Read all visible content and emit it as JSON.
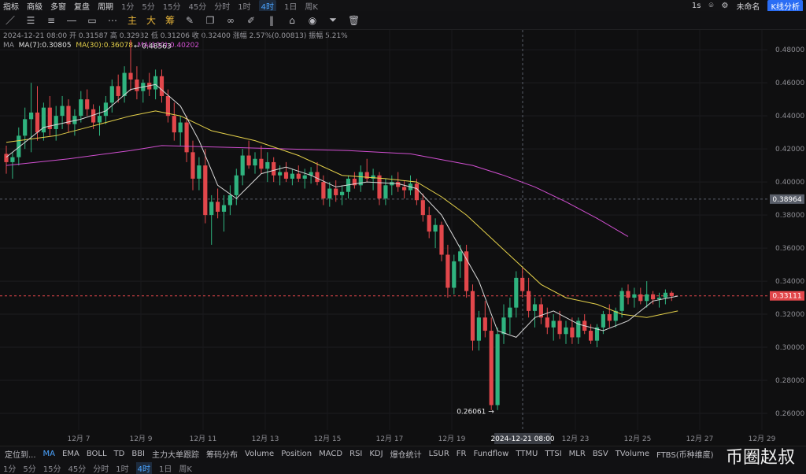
{
  "topbar": {
    "items": [
      "指标",
      "商級",
      "多窗",
      "复盘",
      "周期"
    ],
    "timeframes": [
      "1分",
      "5分",
      "15分",
      "45分",
      "分时",
      "1时",
      "4时",
      "1日",
      "周K"
    ],
    "active_timeframe": "4时",
    "right_items": [
      "1s",
      "未命名",
      "K线分析"
    ]
  },
  "tools": {
    "cn_buttons": [
      "主",
      "大",
      "筹"
    ]
  },
  "legend": {
    "line1": "2024-12-21 08:00  开 0.31587  高 0.32932  低 0.31206  收 0.32400  涨幅 2.57%(0.00813)  振幅 5.21%",
    "ma_label": "MA",
    "ma7": "MA(7):0.30805",
    "ma30": "MA(30):0.36078",
    "ma100": "MA(100):0.40202"
  },
  "bottombar": {
    "lead": "定位到...",
    "items": [
      "MA",
      "EMA",
      "BOLL",
      "TD",
      "BBI",
      "主力大单跟踪",
      "筹码分布",
      "Volume",
      "Position",
      "MACD",
      "RSI",
      "KDJ",
      "爆仓统计",
      "LSUR",
      "FR",
      "Fundflow",
      "TTMU",
      "TTSI",
      "MLR",
      "BSV",
      "TVolume",
      "FTBS(币种维度)"
    ],
    "active": "MA"
  },
  "bottombar2": {
    "items": [
      "1分",
      "5分",
      "15分",
      "45分",
      "分时",
      "1时",
      "4时",
      "1日",
      "周K"
    ],
    "active": "4时"
  },
  "watermark": "币圈赵叔",
  "colors": {
    "background": "#0f0f10",
    "up": "#2fb37f",
    "down": "#e2474b",
    "ma7": "#d9d9d9",
    "ma30": "#e5d14a",
    "ma100": "#d14fd1",
    "current_price": "#e2474b",
    "crosshair_price": "#5a5f6a"
  },
  "chart_data": {
    "type": "candlestick",
    "ylim": [
      0.25,
      0.492
    ],
    "y_ticks": [
      0.48,
      0.46,
      0.44,
      0.42,
      0.4,
      0.38,
      0.36,
      0.34,
      0.32,
      0.3,
      0.28,
      0.26
    ],
    "x_ticks": [
      "12月 7",
      "12月 9",
      "12月 11",
      "12月 13",
      "12月 15",
      "12月 17",
      "12月 19",
      "12月 23",
      "12月 25",
      "12月 27",
      "12月 29"
    ],
    "crosshair_x_label": "2024-12-21 08:00",
    "crosshair_price": 0.38964,
    "current_price": 0.33111,
    "high_annotation": 0.48563,
    "low_annotation": 0.26061,
    "candles": [
      [
        0.417,
        0.422,
        0.405,
        0.412
      ],
      [
        0.412,
        0.418,
        0.402,
        0.415
      ],
      [
        0.415,
        0.433,
        0.41,
        0.428
      ],
      [
        0.428,
        0.445,
        0.42,
        0.438
      ],
      [
        0.438,
        0.46,
        0.418,
        0.442
      ],
      [
        0.442,
        0.458,
        0.425,
        0.43
      ],
      [
        0.43,
        0.448,
        0.425,
        0.445
      ],
      [
        0.445,
        0.452,
        0.428,
        0.432
      ],
      [
        0.432,
        0.446,
        0.425,
        0.44
      ],
      [
        0.44,
        0.452,
        0.432,
        0.446
      ],
      [
        0.446,
        0.45,
        0.43,
        0.435
      ],
      [
        0.435,
        0.444,
        0.428,
        0.44
      ],
      [
        0.44,
        0.455,
        0.436,
        0.45
      ],
      [
        0.45,
        0.456,
        0.44,
        0.444
      ],
      [
        0.444,
        0.447,
        0.432,
        0.436
      ],
      [
        0.436,
        0.446,
        0.428,
        0.44
      ],
      [
        0.44,
        0.452,
        0.435,
        0.448
      ],
      [
        0.448,
        0.462,
        0.442,
        0.458
      ],
      [
        0.458,
        0.465,
        0.448,
        0.452
      ],
      [
        0.452,
        0.47,
        0.448,
        0.466
      ],
      [
        0.466,
        0.486,
        0.455,
        0.462
      ],
      [
        0.462,
        0.47,
        0.45,
        0.455
      ],
      [
        0.455,
        0.462,
        0.448,
        0.46
      ],
      [
        0.46,
        0.466,
        0.452,
        0.456
      ],
      [
        0.456,
        0.468,
        0.45,
        0.464
      ],
      [
        0.464,
        0.468,
        0.448,
        0.452
      ],
      [
        0.452,
        0.456,
        0.436,
        0.44
      ],
      [
        0.44,
        0.448,
        0.425,
        0.43
      ],
      [
        0.43,
        0.44,
        0.422,
        0.436
      ],
      [
        0.436,
        0.44,
        0.412,
        0.418
      ],
      [
        0.418,
        0.425,
        0.395,
        0.402
      ],
      [
        0.402,
        0.415,
        0.395,
        0.41
      ],
      [
        0.41,
        0.42,
        0.375,
        0.38
      ],
      [
        0.38,
        0.392,
        0.362,
        0.388
      ],
      [
        0.388,
        0.396,
        0.378,
        0.382
      ],
      [
        0.382,
        0.392,
        0.37,
        0.386
      ],
      [
        0.386,
        0.398,
        0.38,
        0.392
      ],
      [
        0.392,
        0.408,
        0.386,
        0.404
      ],
      [
        0.404,
        0.42,
        0.398,
        0.416
      ],
      [
        0.416,
        0.425,
        0.408,
        0.41
      ],
      [
        0.41,
        0.418,
        0.405,
        0.414
      ],
      [
        0.414,
        0.422,
        0.405,
        0.408
      ],
      [
        0.408,
        0.418,
        0.4,
        0.412
      ],
      [
        0.412,
        0.415,
        0.4,
        0.404
      ],
      [
        0.404,
        0.41,
        0.398,
        0.406
      ],
      [
        0.406,
        0.412,
        0.4,
        0.402
      ],
      [
        0.402,
        0.408,
        0.398,
        0.405
      ],
      [
        0.405,
        0.41,
        0.4,
        0.402
      ],
      [
        0.402,
        0.408,
        0.396,
        0.404
      ],
      [
        0.404,
        0.409,
        0.399,
        0.406
      ],
      [
        0.406,
        0.412,
        0.398,
        0.4
      ],
      [
        0.4,
        0.404,
        0.386,
        0.39
      ],
      [
        0.39,
        0.4,
        0.385,
        0.396
      ],
      [
        0.396,
        0.401,
        0.388,
        0.392
      ],
      [
        0.392,
        0.398,
        0.386,
        0.394
      ],
      [
        0.394,
        0.404,
        0.39,
        0.402
      ],
      [
        0.402,
        0.406,
        0.396,
        0.398
      ],
      [
        0.398,
        0.41,
        0.394,
        0.406
      ],
      [
        0.406,
        0.414,
        0.4,
        0.402
      ],
      [
        0.402,
        0.408,
        0.395,
        0.404
      ],
      [
        0.404,
        0.406,
        0.386,
        0.39
      ],
      [
        0.39,
        0.402,
        0.386,
        0.398
      ],
      [
        0.398,
        0.404,
        0.392,
        0.4
      ],
      [
        0.4,
        0.406,
        0.394,
        0.397
      ],
      [
        0.397,
        0.401,
        0.39,
        0.395
      ],
      [
        0.395,
        0.404,
        0.392,
        0.399
      ],
      [
        0.399,
        0.402,
        0.386,
        0.389
      ],
      [
        0.389,
        0.393,
        0.376,
        0.38
      ],
      [
        0.38,
        0.385,
        0.366,
        0.37
      ],
      [
        0.37,
        0.378,
        0.36,
        0.374
      ],
      [
        0.374,
        0.376,
        0.352,
        0.356
      ],
      [
        0.356,
        0.362,
        0.33,
        0.336
      ],
      [
        0.336,
        0.356,
        0.332,
        0.352
      ],
      [
        0.352,
        0.362,
        0.342,
        0.358
      ],
      [
        0.358,
        0.362,
        0.33,
        0.334
      ],
      [
        0.334,
        0.338,
        0.298,
        0.304
      ],
      [
        0.304,
        0.322,
        0.298,
        0.318
      ],
      [
        0.318,
        0.328,
        0.306,
        0.31
      ],
      [
        0.31,
        0.318,
        0.262,
        0.265
      ],
      [
        0.265,
        0.312,
        0.262,
        0.308
      ],
      [
        0.308,
        0.326,
        0.302,
        0.318
      ],
      [
        0.318,
        0.33,
        0.308,
        0.324
      ],
      [
        0.324,
        0.346,
        0.318,
        0.342
      ],
      [
        0.342,
        0.348,
        0.33,
        0.334
      ],
      [
        0.334,
        0.342,
        0.318,
        0.322
      ],
      [
        0.322,
        0.33,
        0.312,
        0.326
      ],
      [
        0.326,
        0.33,
        0.314,
        0.318
      ],
      [
        0.318,
        0.324,
        0.308,
        0.312
      ],
      [
        0.312,
        0.32,
        0.304,
        0.316
      ],
      [
        0.316,
        0.322,
        0.305,
        0.308
      ],
      [
        0.308,
        0.316,
        0.302,
        0.312
      ],
      [
        0.312,
        0.318,
        0.302,
        0.306
      ],
      [
        0.306,
        0.318,
        0.302,
        0.316
      ],
      [
        0.316,
        0.32,
        0.308,
        0.31
      ],
      [
        0.31,
        0.314,
        0.302,
        0.304
      ],
      [
        0.304,
        0.314,
        0.3,
        0.312
      ],
      [
        0.312,
        0.322,
        0.308,
        0.32
      ],
      [
        0.32,
        0.326,
        0.312,
        0.316
      ],
      [
        0.316,
        0.324,
        0.312,
        0.322
      ],
      [
        0.322,
        0.336,
        0.318,
        0.334
      ],
      [
        0.334,
        0.338,
        0.326,
        0.33
      ],
      [
        0.33,
        0.336,
        0.324,
        0.332
      ],
      [
        0.332,
        0.336,
        0.326,
        0.328
      ],
      [
        0.328,
        0.34,
        0.324,
        0.332
      ],
      [
        0.332,
        0.334,
        0.326,
        0.329
      ],
      [
        0.329,
        0.333,
        0.324,
        0.33
      ],
      [
        0.33,
        0.335,
        0.326,
        0.333
      ],
      [
        0.333,
        0.334,
        0.328,
        0.331
      ]
    ],
    "ma7": [
      [
        0,
        0.415
      ],
      [
        6,
        0.433
      ],
      [
        12,
        0.438
      ],
      [
        16,
        0.443
      ],
      [
        20,
        0.456
      ],
      [
        24,
        0.459
      ],
      [
        28,
        0.446
      ],
      [
        31,
        0.425
      ],
      [
        34,
        0.398
      ],
      [
        37,
        0.39
      ],
      [
        41,
        0.405
      ],
      [
        45,
        0.409
      ],
      [
        49,
        0.404
      ],
      [
        53,
        0.397
      ],
      [
        58,
        0.4
      ],
      [
        63,
        0.399
      ],
      [
        66,
        0.396
      ],
      [
        70,
        0.38
      ],
      [
        73,
        0.36
      ],
      [
        76,
        0.34
      ],
      [
        79,
        0.31
      ],
      [
        82,
        0.306
      ],
      [
        85,
        0.318
      ],
      [
        88,
        0.322
      ],
      [
        92,
        0.314
      ],
      [
        96,
        0.31
      ],
      [
        100,
        0.316
      ],
      [
        104,
        0.328
      ],
      [
        108,
        0.331
      ]
    ],
    "ma30": [
      [
        0,
        0.424
      ],
      [
        8,
        0.428
      ],
      [
        14,
        0.434
      ],
      [
        20,
        0.44
      ],
      [
        24,
        0.443
      ],
      [
        28,
        0.44
      ],
      [
        33,
        0.431
      ],
      [
        40,
        0.425
      ],
      [
        47,
        0.416
      ],
      [
        54,
        0.404
      ],
      [
        61,
        0.402
      ],
      [
        66,
        0.4
      ],
      [
        70,
        0.391
      ],
      [
        74,
        0.38
      ],
      [
        78,
        0.366
      ],
      [
        82,
        0.352
      ],
      [
        86,
        0.338
      ],
      [
        90,
        0.33
      ],
      [
        95,
        0.326
      ],
      [
        99,
        0.32
      ],
      [
        103,
        0.318
      ],
      [
        108,
        0.322
      ]
    ],
    "ma100": [
      [
        0,
        0.41
      ],
      [
        10,
        0.414
      ],
      [
        20,
        0.419
      ],
      [
        25,
        0.422
      ],
      [
        35,
        0.421
      ],
      [
        45,
        0.42
      ],
      [
        55,
        0.419
      ],
      [
        65,
        0.417
      ],
      [
        75,
        0.41
      ],
      [
        80,
        0.404
      ],
      [
        85,
        0.397
      ],
      [
        90,
        0.388
      ],
      [
        95,
        0.378
      ],
      [
        100,
        0.367
      ]
    ]
  }
}
